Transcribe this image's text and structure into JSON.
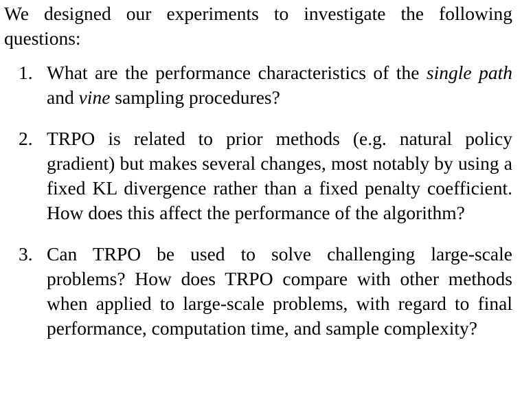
{
  "intro": "We designed our experiments to investigate the following questions:",
  "questions": [
    {
      "number": "1.",
      "parts": [
        "What are the performance characteristics of the ",
        "single path",
        " and ",
        "vine",
        " sampling procedures?"
      ]
    },
    {
      "number": "2.",
      "text": "TRPO is related to prior methods (e.g. natural policy gradient) but makes several changes, most notably by using a fixed KL divergence rather than a fixed penalty coefficient. How does this affect the performance of the algorithm?"
    },
    {
      "number": "3.",
      "text": "Can TRPO be used to solve challenging large-scale problems? How does TRPO compare with other methods when applied to large-scale problems, with regard to final performance, computation time, and sample complexity?"
    }
  ]
}
